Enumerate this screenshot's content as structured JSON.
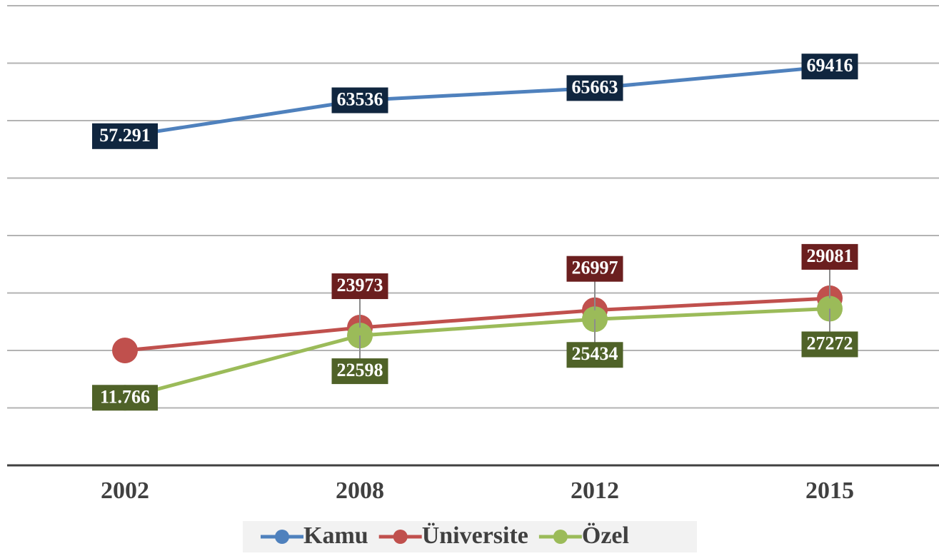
{
  "chart_data": {
    "type": "line",
    "categories": [
      "2002",
      "2008",
      "2012",
      "2015"
    ],
    "series": [
      {
        "name": "Kamu",
        "color": "#4f81bd",
        "label_color": "#10263f",
        "values": [
          57291,
          63536,
          65663,
          69416
        ],
        "value_labels": [
          "57.291",
          "63536",
          "65663",
          "69416"
        ]
      },
      {
        "name": "Üniversite",
        "color": "#c0504d",
        "label_color": "#6b1f1f",
        "values": [
          20000,
          23973,
          26997,
          29081
        ],
        "value_labels": [
          null,
          "23973",
          "26997",
          "29081"
        ]
      },
      {
        "name": "Özel",
        "color": "#9bbb59",
        "label_color": "#4f6228",
        "values": [
          11766,
          22598,
          25434,
          27272
        ],
        "value_labels": [
          "11.766",
          "22598",
          "25434",
          "27272"
        ]
      }
    ],
    "ylim": [
      0,
      80000
    ],
    "yticks": [
      0,
      10000,
      20000,
      30000,
      40000,
      50000,
      60000,
      70000,
      80000
    ],
    "grid": true,
    "legend": "bottom"
  }
}
